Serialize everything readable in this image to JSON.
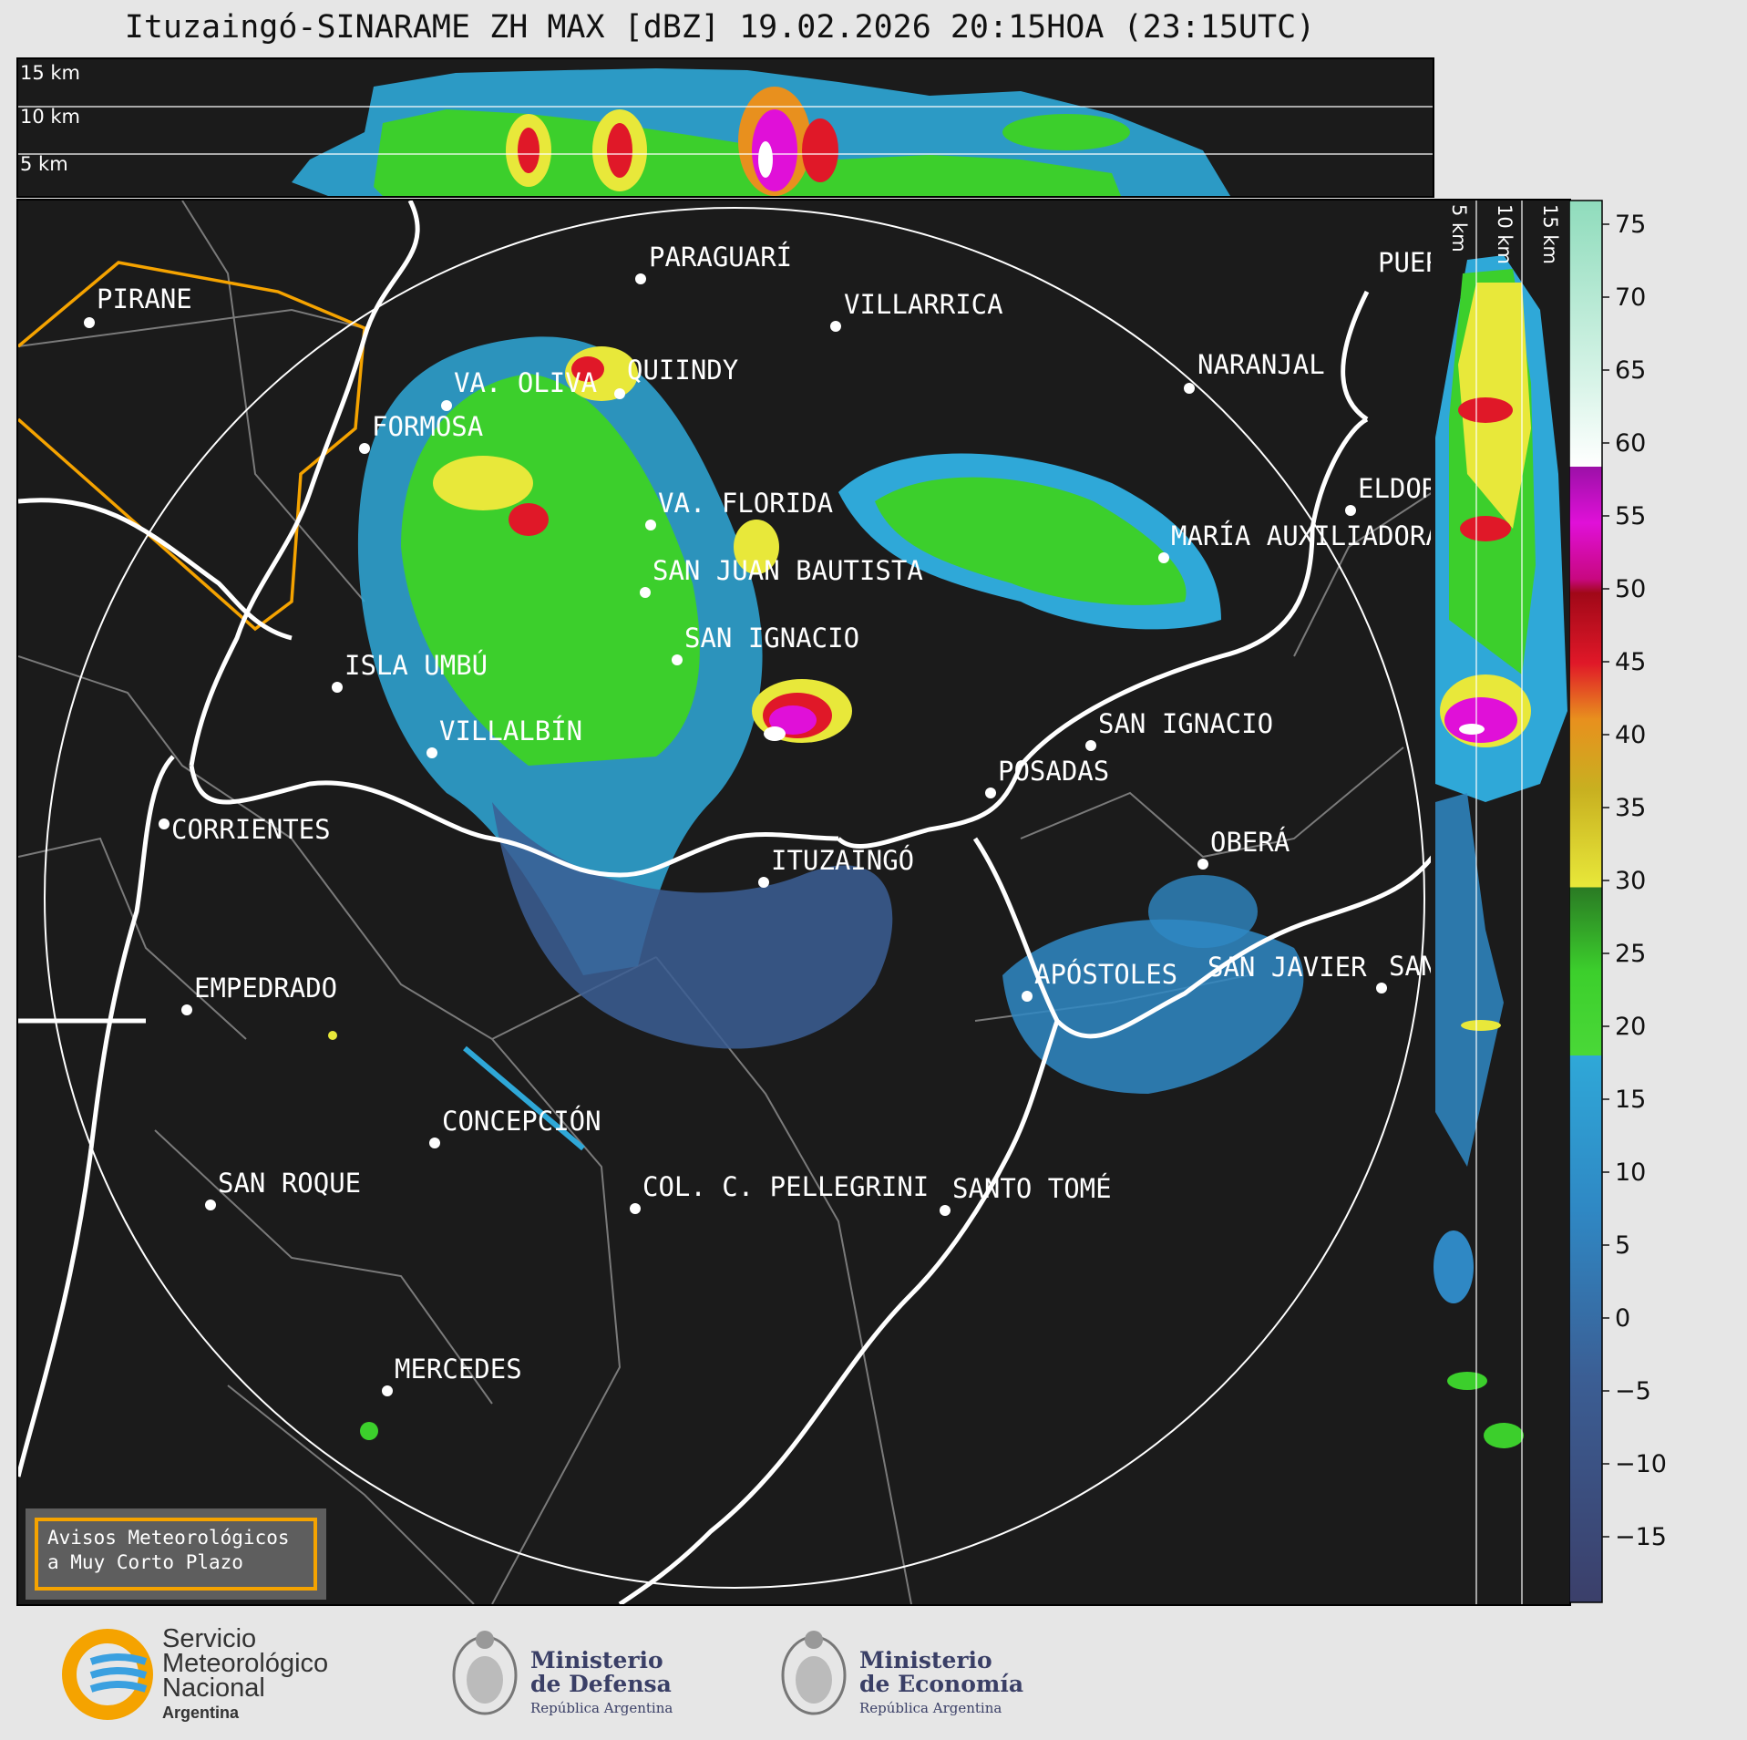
{
  "title": "Ituzaingó-SINARAME ZH MAX [dBZ] 19.02.2026 20:15HOA (23:15UTC)",
  "top_panel": {
    "height_labels": [
      "15 km",
      "10 km",
      "5 km"
    ]
  },
  "side_panel": {
    "height_labels": [
      "5 km",
      "10 km",
      "15 km"
    ]
  },
  "cities": [
    {
      "name": "PARAGUARÍ"
    },
    {
      "name": "VILLARRICA"
    },
    {
      "name": "PIRANE"
    },
    {
      "name": "NARANJAL"
    },
    {
      "name": "QUIINDY"
    },
    {
      "name": "VA. OLIVA"
    },
    {
      "name": "FORMOSA"
    },
    {
      "name": "VA. FLORIDA"
    },
    {
      "name": "ELDORADO"
    },
    {
      "name": "MARÍA AUXILIADORA"
    },
    {
      "name": "SAN JUAN BAUTISTA"
    },
    {
      "name": "SAN IGNACIO"
    },
    {
      "name": "ISLA UMBÚ"
    },
    {
      "name": "VILLALBÍN"
    },
    {
      "name": "SAN IGNACIO"
    },
    {
      "name": "POSADAS"
    },
    {
      "name": "CORRIENTES"
    },
    {
      "name": "OBERÁ"
    },
    {
      "name": "ITUZAINGÓ"
    },
    {
      "name": "APÓSTOLES"
    },
    {
      "name": "SAN JAVIER"
    },
    {
      "name": "SAN"
    },
    {
      "name": "EMPEDRADO"
    },
    {
      "name": "CONCEPCIÓN"
    },
    {
      "name": "COL. C. PELLEGRINI"
    },
    {
      "name": "SANTO TOMÉ"
    },
    {
      "name": "SAN ROQUE"
    },
    {
      "name": "MERCEDES"
    },
    {
      "name": "PUERTO"
    }
  ],
  "colorbar": {
    "unit": "dBZ",
    "ticks": [
      "75",
      "70",
      "65",
      "60",
      "55",
      "50",
      "45",
      "40",
      "35",
      "30",
      "25",
      "20",
      "15",
      "10",
      "5",
      "0",
      "−5",
      "−10",
      "−15"
    ],
    "colors": {
      "low": "#3b3f6a",
      "blue": "#2f88c4",
      "cyan": "#2fa8d8",
      "green": "#3ccf2c",
      "dkgreen": "#2a7a24",
      "yellow": "#e8e83a",
      "orange": "#e8901e",
      "red": "#e01828",
      "magenta": "#e010d8",
      "white": "#ffffff",
      "mint": "#8fdcbc"
    }
  },
  "aviso": {
    "line1": "Avisos Meteorológicos",
    "line2": "a Muy Corto Plazo"
  },
  "footer": {
    "smn": {
      "l1": "Servicio",
      "l2": "Meteorológico",
      "l3": "Nacional",
      "l4": "Argentina"
    },
    "defensa": {
      "l1": "Ministerio",
      "l2": "de Defensa",
      "l3": "República Argentina"
    },
    "economia": {
      "l1": "Ministerio",
      "l2": "de Economía",
      "l3": "República Argentina"
    }
  }
}
